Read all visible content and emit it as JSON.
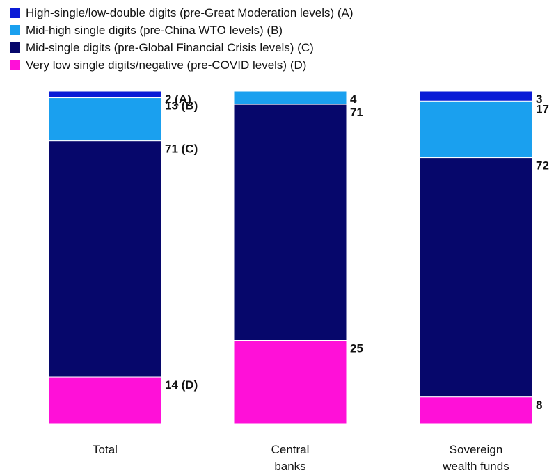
{
  "chart_data": {
    "type": "bar",
    "stacked": true,
    "normalized": true,
    "categories": [
      [
        "Total"
      ],
      [
        "Central",
        "banks"
      ],
      [
        "Sovereign",
        "wealth funds"
      ]
    ],
    "series": [
      {
        "name": "High-single/low-double digits (pre-Great Moderation levels) (A)",
        "color": "#0a1bd6",
        "values": [
          2,
          0,
          3
        ],
        "labels": [
          "2 (A)",
          "",
          "3"
        ]
      },
      {
        "name": "Mid-high single digits (pre-China WTO levels) (B)",
        "color": "#1aa0ef",
        "values": [
          13,
          4,
          17
        ],
        "labels": [
          "13 (B)",
          "4",
          "17"
        ]
      },
      {
        "name": "Mid-single digits (pre-Global Financial Crisis levels) (C)",
        "color": "#06076b",
        "values": [
          71,
          71,
          72
        ],
        "labels": [
          "71 (C)",
          "71",
          "72"
        ]
      },
      {
        "name": "Very low single digits/negative (pre-COVID levels) (D)",
        "color": "#ff10d8",
        "values": [
          14,
          25,
          8
        ],
        "labels": [
          "14 (D)",
          "25",
          "8"
        ]
      }
    ],
    "legend_position": "top-left",
    "grid": false
  }
}
